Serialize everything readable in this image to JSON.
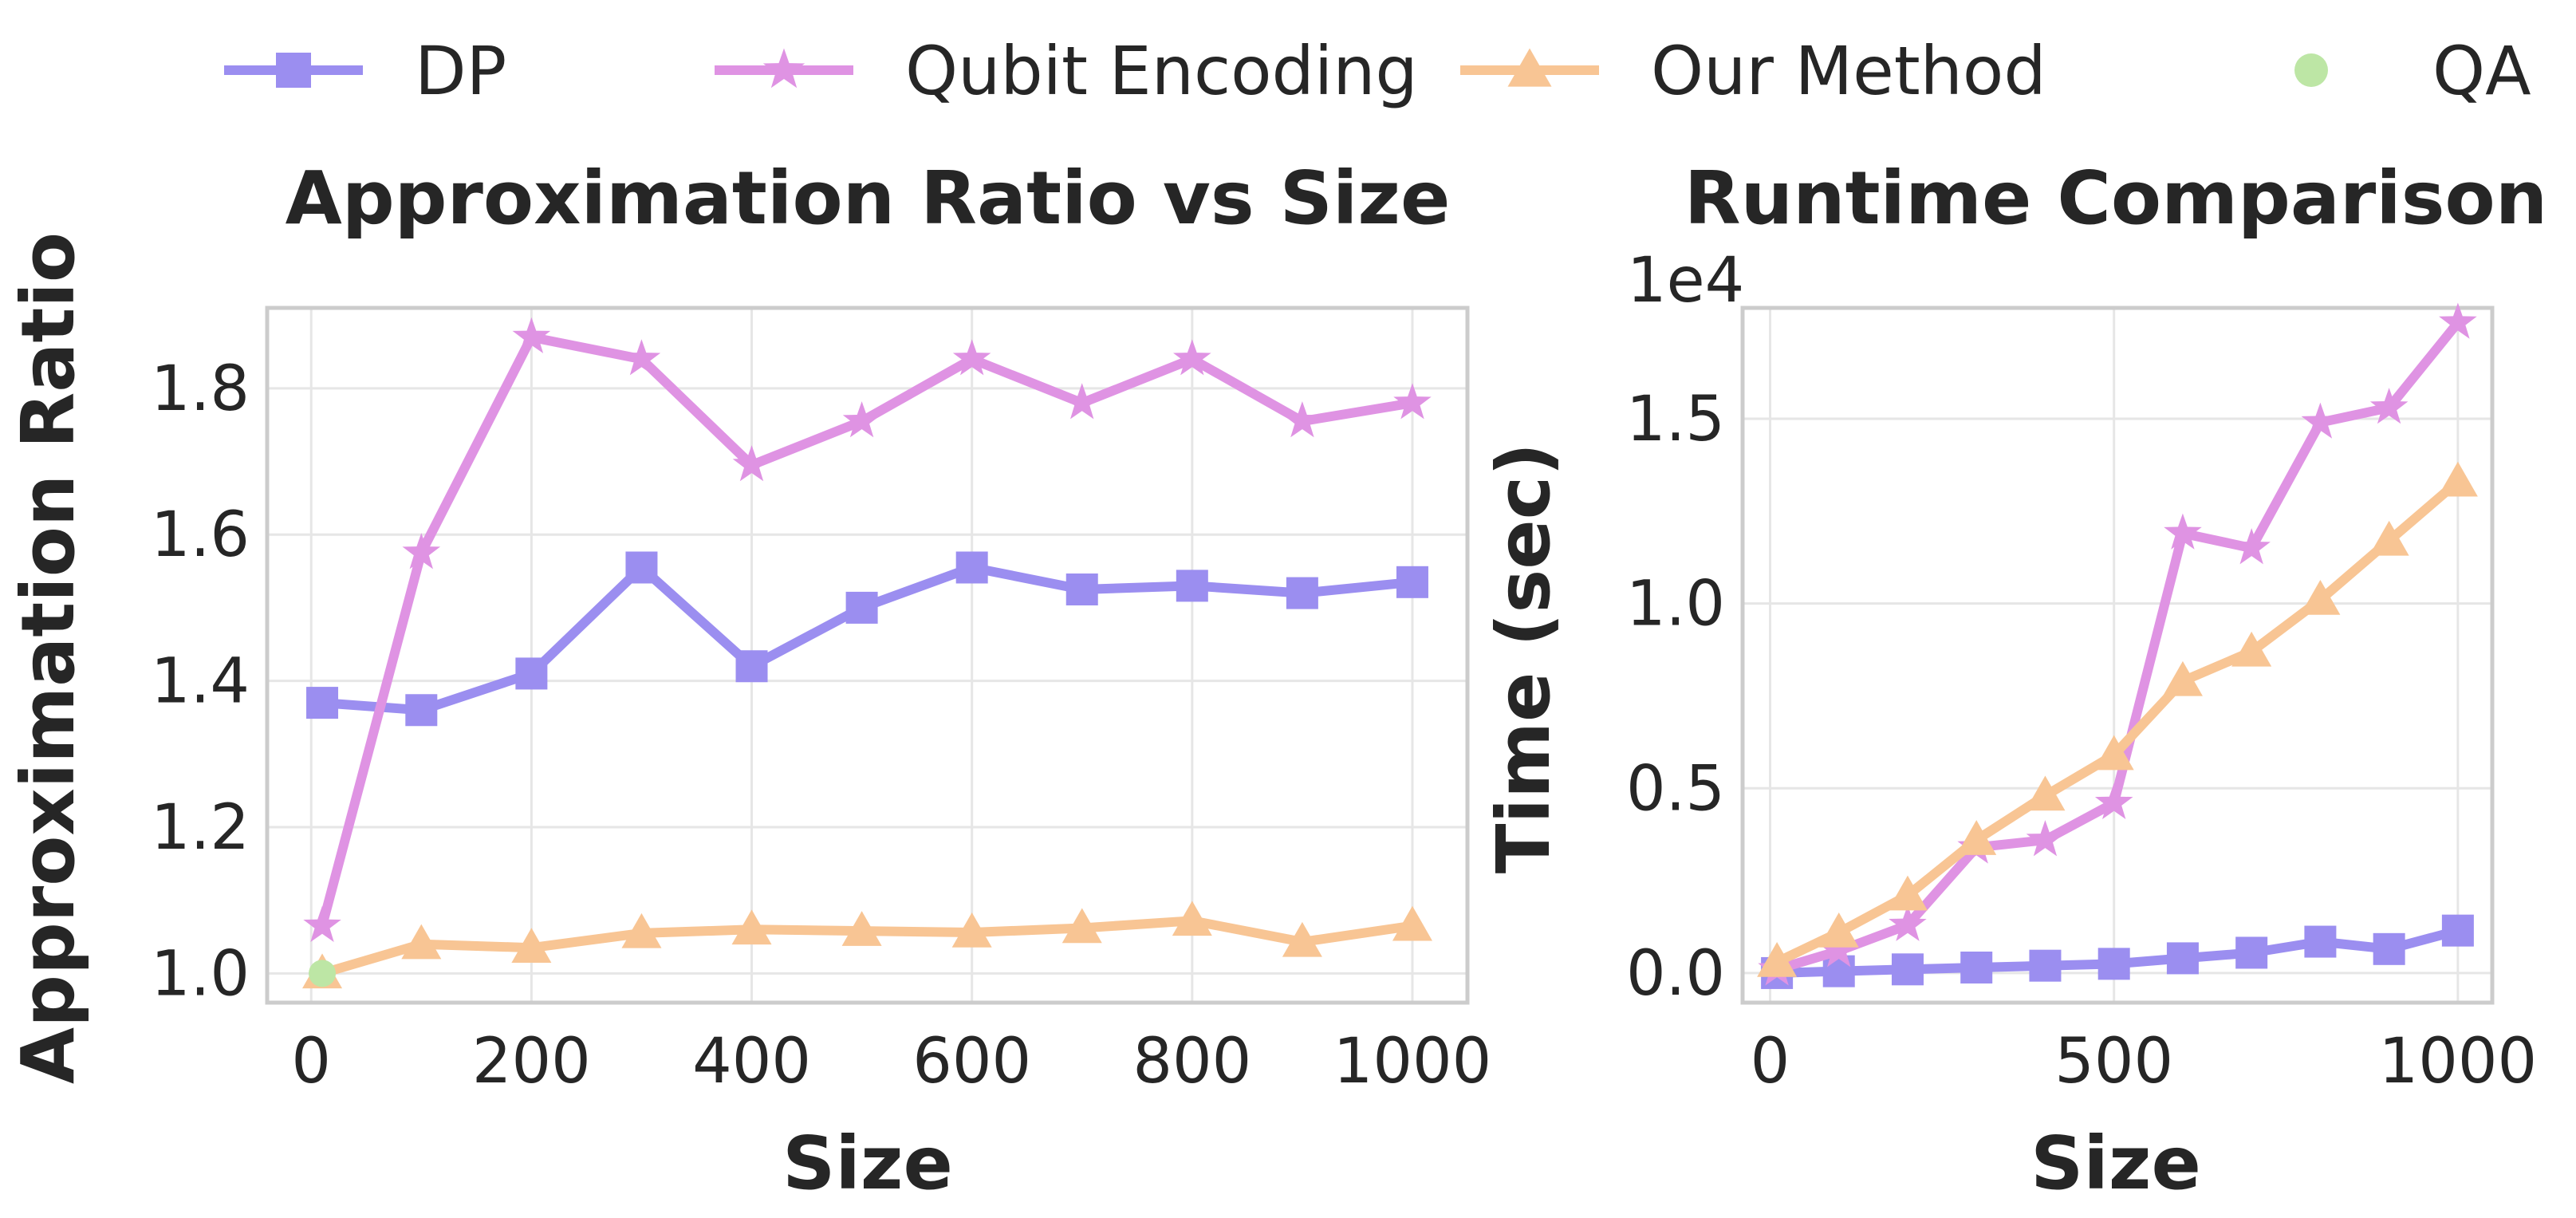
{
  "legend": [
    {
      "name": "DP",
      "color": "#9b8ef0",
      "marker": "square"
    },
    {
      "name": "Qubit Encoding",
      "color": "#df93e3",
      "marker": "star"
    },
    {
      "name": "Our Method",
      "color": "#f8c594",
      "marker": "triangle"
    },
    {
      "name": "QA",
      "color": "#bde6a5",
      "marker": "circle"
    }
  ],
  "chart_data": [
    {
      "type": "line",
      "title": "Approximation Ratio vs Size",
      "xlabel": "Size",
      "ylabel": "Approximation Ratio",
      "xlim": [
        -40,
        1050
      ],
      "ylim": [
        0.96,
        1.91
      ],
      "xticks": [
        0,
        200,
        400,
        600,
        800,
        1000
      ],
      "yticks": [
        1.0,
        1.2,
        1.4,
        1.6,
        1.8
      ],
      "ytick_labels": [
        "1.0",
        "1.2",
        "1.4",
        "1.6",
        "1.8"
      ],
      "grid": true,
      "series": [
        {
          "name": "DP",
          "color": "#9b8ef0",
          "marker": "square",
          "x": [
            10,
            100,
            200,
            300,
            400,
            500,
            600,
            700,
            800,
            900,
            1000
          ],
          "y": [
            1.37,
            1.36,
            1.41,
            1.555,
            1.42,
            1.5,
            1.555,
            1.525,
            1.53,
            1.52,
            1.535
          ]
        },
        {
          "name": "Qubit Encoding",
          "color": "#df93e3",
          "marker": "star",
          "x": [
            10,
            100,
            200,
            300,
            400,
            500,
            600,
            700,
            800,
            900,
            1000
          ],
          "y": [
            1.065,
            1.575,
            1.87,
            1.84,
            1.695,
            1.755,
            1.84,
            1.78,
            1.84,
            1.755,
            1.78
          ]
        },
        {
          "name": "Our Method",
          "color": "#f8c594",
          "marker": "triangle",
          "x": [
            10,
            100,
            200,
            300,
            400,
            500,
            600,
            700,
            800,
            900,
            1000
          ],
          "y": [
            1.0,
            1.04,
            1.035,
            1.055,
            1.06,
            1.058,
            1.056,
            1.062,
            1.072,
            1.043,
            1.065
          ]
        },
        {
          "name": "QA",
          "color": "#bde6a5",
          "marker": "circle",
          "x": [
            10
          ],
          "y": [
            1.0
          ]
        }
      ]
    },
    {
      "type": "line",
      "title": "Runtime Comparison",
      "xlabel": "Size",
      "ylabel": "Time (sec)",
      "offset_text": "1e4",
      "xlim": [
        -40,
        1050
      ],
      "ylim": [
        -800,
        18000
      ],
      "xticks": [
        0,
        500,
        1000
      ],
      "yticks": [
        0,
        5000,
        10000,
        15000
      ],
      "ytick_labels": [
        "0.0",
        "0.5",
        "1.0",
        "1.5"
      ],
      "grid": true,
      "series": [
        {
          "name": "DP",
          "color": "#9b8ef0",
          "marker": "square",
          "x": [
            10,
            100,
            200,
            300,
            400,
            500,
            600,
            700,
            800,
            900,
            1000
          ],
          "y": [
            0,
            50,
            100,
            150,
            200,
            250,
            400,
            550,
            850,
            650,
            1150
          ]
        },
        {
          "name": "Qubit Encoding",
          "color": "#df93e3",
          "marker": "star",
          "x": [
            10,
            100,
            200,
            300,
            400,
            500,
            600,
            700,
            800,
            900,
            1000
          ],
          "y": [
            100,
            600,
            1300,
            3400,
            3600,
            4600,
            11900,
            11500,
            14900,
            15300,
            17600
          ]
        },
        {
          "name": "Our Method",
          "color": "#f8c594",
          "marker": "triangle",
          "x": [
            10,
            100,
            200,
            300,
            400,
            500,
            600,
            700,
            800,
            900,
            1000
          ],
          "y": [
            300,
            1100,
            2100,
            3600,
            4800,
            5900,
            7900,
            8700,
            10100,
            11700,
            13300
          ]
        }
      ]
    }
  ]
}
